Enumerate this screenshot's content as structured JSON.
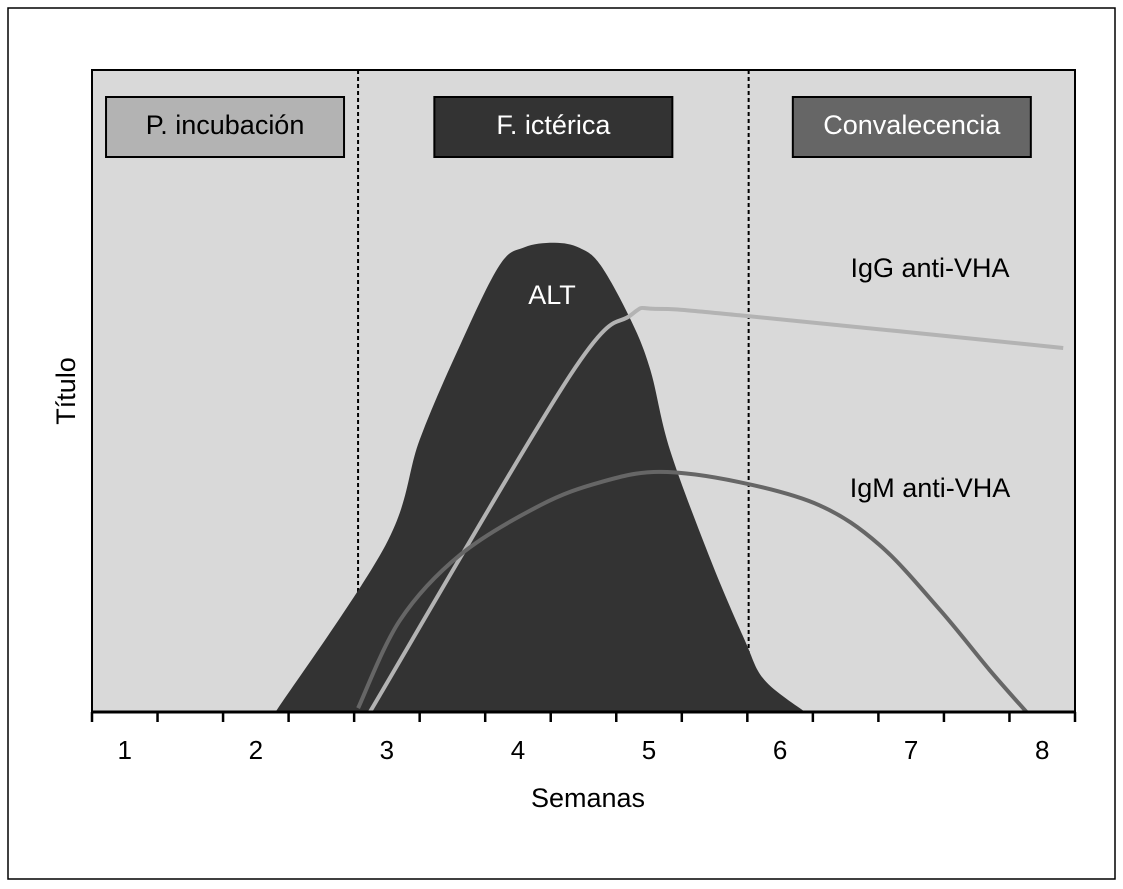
{
  "chart_data": {
    "type": "area_line",
    "xlabel": "Semanas",
    "ylabel": "Título",
    "xlim": [
      0.75,
      8.25
    ],
    "xticks": [
      1,
      2,
      3,
      4,
      5,
      6,
      7,
      8
    ],
    "xminor_ticks": [
      0.75,
      1.25,
      1.75,
      2.25,
      2.75,
      3.25,
      3.75,
      4.25,
      4.75,
      5.25,
      5.75,
      6.25,
      6.75,
      7.25,
      7.75,
      8.25
    ],
    "ylim": [
      0,
      100
    ],
    "phase_dividers": [
      2.78,
      5.76
    ],
    "phases": [
      {
        "label": "P. incubación",
        "color": "#b3b3b3"
      },
      {
        "label": "F. ictérica",
        "color": "#333333"
      },
      {
        "label": "Convalecencia",
        "color": "#666666"
      }
    ],
    "series": [
      {
        "name": "ALT",
        "color": "#333333",
        "style": "area",
        "x": [
          2.15,
          2.99,
          3.25,
          3.56,
          3.86,
          4.05,
          4.28,
          4.47,
          4.63,
          4.86,
          5.01,
          5.16,
          5.47,
          5.73,
          5.88,
          6.19
        ],
        "values": [
          0,
          26,
          42.4,
          57.2,
          69.6,
          72.4,
          73.1,
          72.3,
          69.6,
          61.1,
          53.3,
          40.8,
          23.7,
          11.2,
          5,
          0
        ]
      },
      {
        "name": "IgG anti-VHA",
        "color": "#b3b3b3",
        "style": "line",
        "x": [
          2.87,
          4.4,
          4.86,
          5.05,
          5.69,
          8.16
        ],
        "values": [
          0,
          52.5,
          61.8,
          62.8,
          61.8,
          56.7
        ]
      },
      {
        "name": "IgM anti-VHA",
        "color": "#666666",
        "style": "line",
        "x": [
          2.78,
          3.1,
          3.56,
          4.17,
          4.63,
          5.08,
          5.69,
          6.3,
          6.76,
          7.22,
          7.6,
          7.88
        ],
        "values": [
          0.6,
          14.3,
          24.5,
          32.2,
          35.8,
          37.4,
          35.8,
          32.2,
          26,
          15.9,
          6.5,
          0
        ]
      }
    ]
  }
}
